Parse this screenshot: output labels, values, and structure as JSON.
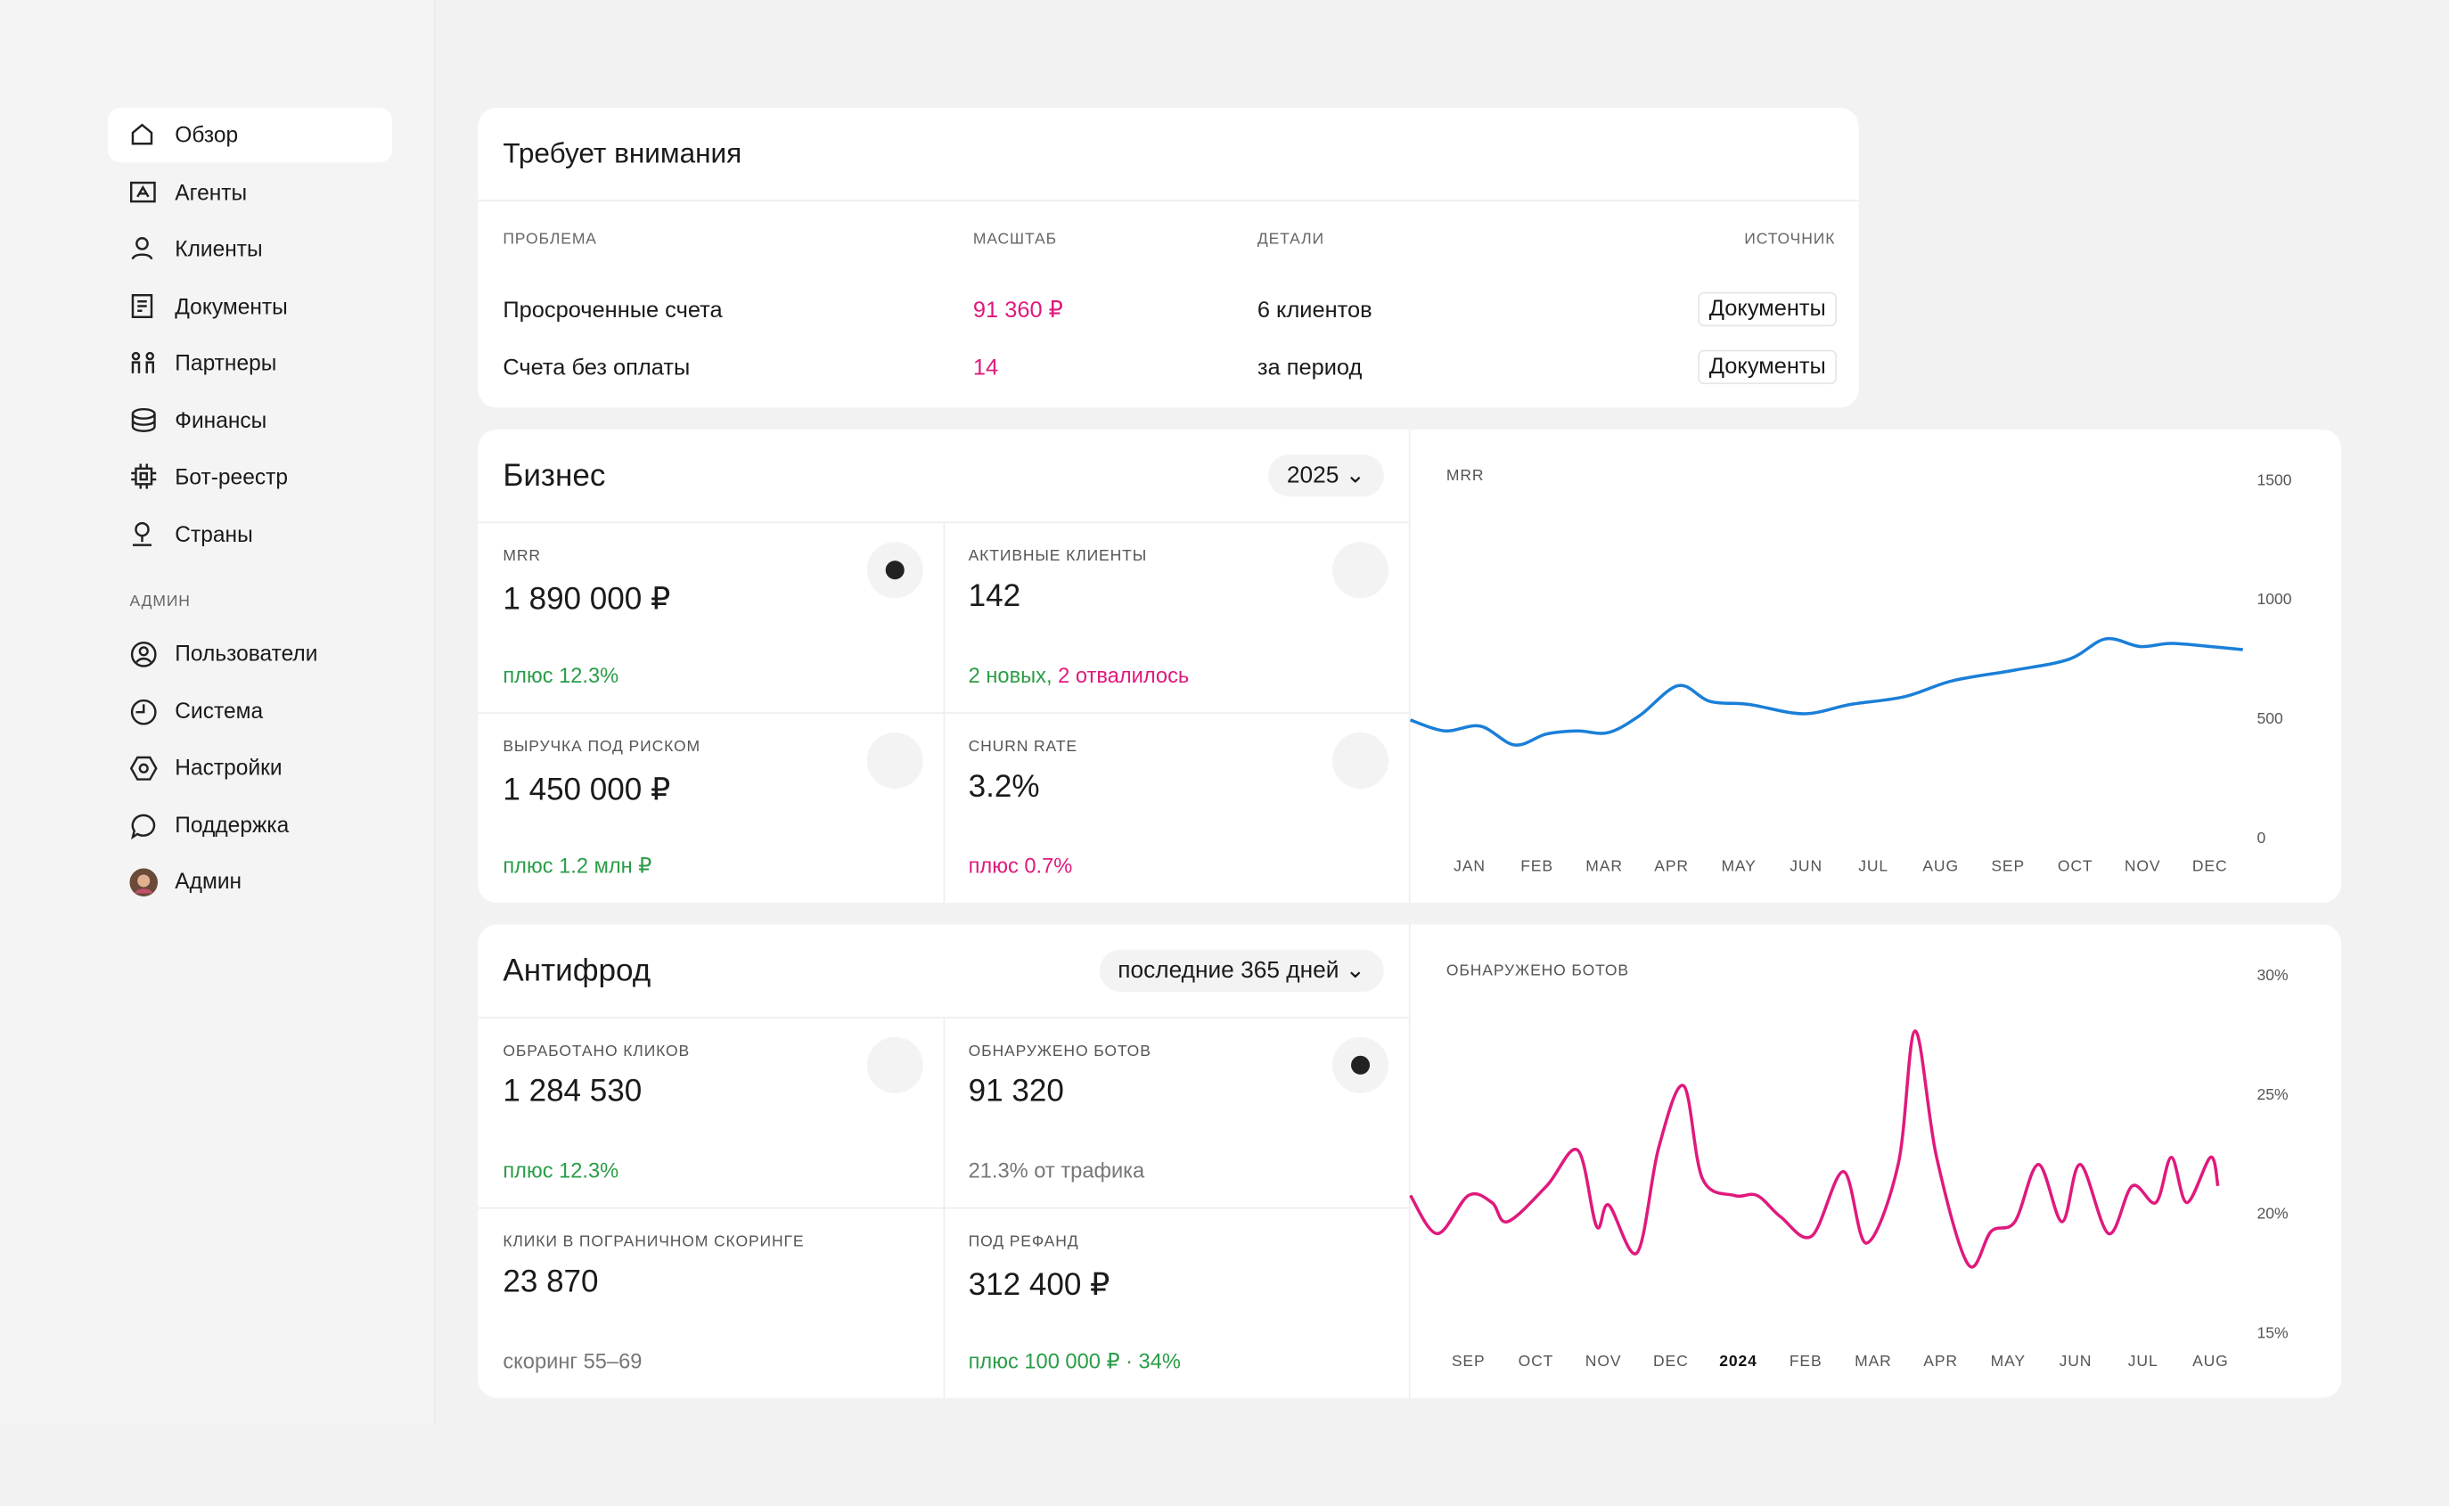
{
  "sidebar": {
    "items": [
      "Обзор",
      "Агенты",
      "Клиенты",
      "Документы",
      "Партнеры",
      "Финансы",
      "Бот-реестр",
      "Страны"
    ],
    "section": "АДМИН",
    "admin_items": [
      "Пользователи",
      "Система",
      "Настройки",
      "Поддержка",
      "Админ"
    ]
  },
  "attention": {
    "title": "Требует внимания",
    "columns": [
      "ПРОБЛЕМА",
      "МАСШТАБ",
      "ДЕТАЛИ",
      "ИСТОЧНИК"
    ],
    "rows": [
      [
        "Просроченные счета",
        "91 360 ₽",
        "6 клиентов",
        "Документы"
      ],
      [
        "Счета без оплаты",
        "14",
        "за период",
        "Документы"
      ]
    ]
  },
  "business": {
    "title": "Бизнес",
    "selector": "2025",
    "metrics": [
      {
        "label": "MRR",
        "value": "1 890 000 ₽",
        "note": "плюс 12.3%"
      },
      {
        "label": "АКТИВНЫЕ КЛИЕНТЫ",
        "value": "142",
        "note_parts": [
          "2 новых,",
          "2 отвалилось"
        ]
      },
      {
        "label": "ВЫРУЧКА ПОД РИСКОМ",
        "value": "1 450 000 ₽",
        "note": "плюс 1.2 млн ₽"
      },
      {
        "label": "CHURN RATE",
        "value": "3.2%",
        "note": "плюс 0.7%"
      }
    ]
  },
  "antifraud": {
    "title": "Антифрод",
    "selector": "последние 365 дней",
    "metrics": [
      {
        "label": "ОБРАБОТАНО КЛИКОВ",
        "value": "1 284 530",
        "note": "плюс 12.3%"
      },
      {
        "label": "ОБНАРУЖЕНО БОТОВ",
        "value": "91 320",
        "note": "21.3% от трафика"
      },
      {
        "label": "КЛИКИ В ПОГРАНИЧНОМ СКОРИНГЕ",
        "value": "23 870",
        "note": "скоринг 55–69"
      },
      {
        "label": "ПОД РЕФАНД",
        "value": "312 400 ₽",
        "note": "плюс 100 000 ₽ · 34%"
      }
    ]
  },
  "chart_data": [
    {
      "type": "line",
      "title": "MRR",
      "color": "#1a7fd8",
      "x": [
        -0.88,
        -0.37,
        0.16,
        0.67,
        1.14,
        1.6,
        2.06,
        2.53,
        3.1,
        3.57,
        4.15,
        4.96,
        5.66,
        6.47,
        7.17,
        8.1,
        8.91,
        9.45,
        9.96,
        10.42,
        11.0,
        11.49
      ],
      "values": [
        498,
        452,
        472,
        393,
        439,
        452,
        445,
        517,
        642,
        576,
        563,
        524,
        563,
        596,
        662,
        707,
        753,
        838,
        806,
        819,
        806,
        793
      ],
      "xlim": [
        -0.88,
        11.49
      ],
      "xticks": [
        {
          "value": 0,
          "label": "JAN"
        },
        {
          "value": 1,
          "label": "FEB"
        },
        {
          "value": 2,
          "label": "MAR"
        },
        {
          "value": 3,
          "label": "APR"
        },
        {
          "value": 4,
          "label": "MAY"
        },
        {
          "value": 5,
          "label": "JUN"
        },
        {
          "value": 6,
          "label": "JUL"
        },
        {
          "value": 7,
          "label": "AUG"
        },
        {
          "value": 8,
          "label": "SEP"
        },
        {
          "value": 9,
          "label": "OCT"
        },
        {
          "value": 10,
          "label": "NOV"
        },
        {
          "value": 11,
          "label": "DEC"
        }
      ],
      "ylim": [
        0,
        1500
      ],
      "yticks": [
        0,
        500,
        1000,
        1500
      ],
      "grid": false
    },
    {
      "type": "line",
      "title": "ОБНАРУЖЕНО БОТОВ",
      "color": "#e0197d",
      "x": [
        -0.86,
        -0.46,
        0,
        0.35,
        0.58,
        1.16,
        1.62,
        1.9,
        2.08,
        2.5,
        2.82,
        3.19,
        3.47,
        3.94,
        4.28,
        4.63,
        5.09,
        5.56,
        5.9,
        6.37,
        6.62,
        6.94,
        7.41,
        7.75,
        8.1,
        8.45,
        8.8,
        9.07,
        9.49,
        9.84,
        10.19,
        10.42,
        10.65,
        11.0,
        11.11
      ],
      "values": [
        20.8,
        19.2,
        20.8,
        20.5,
        19.7,
        21.2,
        22.7,
        19.5,
        20.4,
        18.4,
        22.8,
        25.4,
        21.5,
        20.8,
        20.8,
        19.9,
        19.1,
        21.8,
        18.8,
        22.1,
        27.7,
        22.4,
        17.9,
        19.3,
        19.7,
        22.1,
        19.7,
        22.1,
        19.2,
        21.2,
        20.5,
        22.4,
        20.5,
        22.4,
        21.2
      ],
      "xlim": [
        -0.86,
        11.48
      ],
      "xticks": [
        {
          "value": 0,
          "label": "SEP"
        },
        {
          "value": 1,
          "label": "OCT"
        },
        {
          "value": 2,
          "label": "NOV"
        },
        {
          "value": 3,
          "label": "DEC"
        },
        {
          "value": 4,
          "label": "2024"
        },
        {
          "value": 5,
          "label": "FEB"
        },
        {
          "value": 6,
          "label": "MAR"
        },
        {
          "value": 7,
          "label": "APR"
        },
        {
          "value": 8,
          "label": "MAY"
        },
        {
          "value": 9,
          "label": "JUN"
        },
        {
          "value": 10,
          "label": "JUL"
        },
        {
          "value": 11,
          "label": "AUG"
        }
      ],
      "ylim": [
        15,
        30
      ],
      "yticks": [
        {
          "value": 15,
          "label": "15%"
        },
        {
          "value": 20,
          "label": "20%"
        },
        {
          "value": 25,
          "label": "25%"
        },
        {
          "value": 30,
          "label": "30%"
        }
      ],
      "grid": false
    }
  ]
}
